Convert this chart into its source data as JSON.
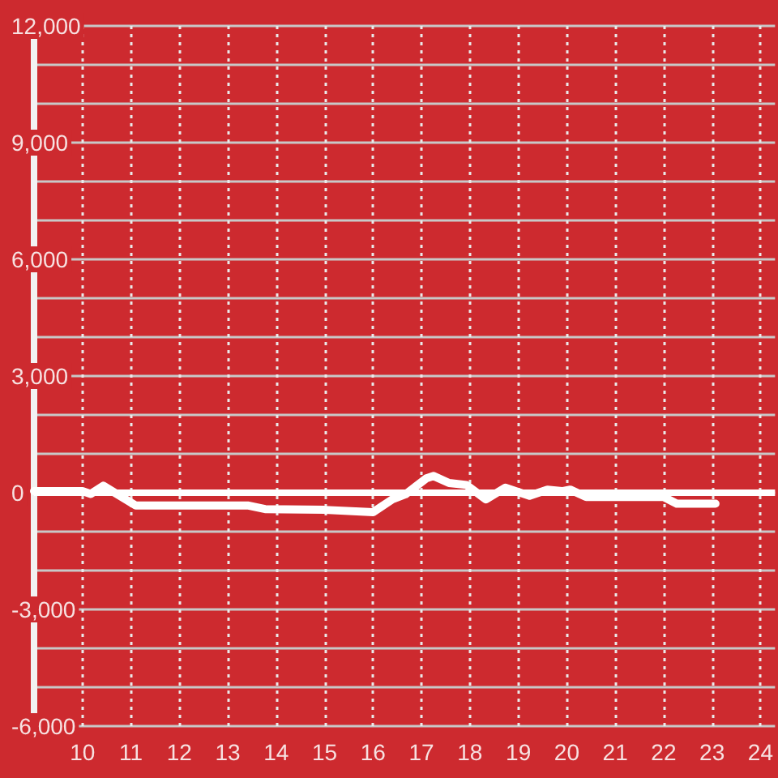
{
  "chart_data": {
    "type": "line",
    "x": [
      9.0,
      10.0,
      10.17,
      10.43,
      11.1,
      13.43,
      13.77,
      15.0,
      16.0,
      16.4,
      16.67,
      17.1,
      17.25,
      17.57,
      17.93,
      18.33,
      18.73,
      19.23,
      19.6,
      19.9,
      20.07,
      20.4,
      22.0,
      22.27,
      23.07
    ],
    "series": [
      {
        "color": "#ffffff",
        "values": [
          40,
          40,
          -30,
          180,
          -330,
          -330,
          -420,
          -440,
          -500,
          -170,
          -40,
          370,
          430,
          250,
          200,
          -170,
          130,
          -80,
          80,
          40,
          80,
          -110,
          -110,
          -280,
          -280
        ]
      }
    ],
    "xlim": [
      9,
      24.3
    ],
    "xticks": [
      10,
      11,
      12,
      13,
      14,
      15,
      16,
      17,
      18,
      19,
      20,
      21,
      22,
      23,
      24
    ],
    "ylim": [
      -6000,
      12000
    ],
    "yticks": [
      {
        "value": -6000,
        "label": "-6,000"
      },
      {
        "value": -5000,
        "label": null
      },
      {
        "value": -4000,
        "label": null
      },
      {
        "value": -3000,
        "label": "-3,000"
      },
      {
        "value": -2000,
        "label": null
      },
      {
        "value": -1000,
        "label": null
      },
      0,
      {
        "value": 1000,
        "label": null
      },
      {
        "value": 2000,
        "label": null
      },
      {
        "value": 3000,
        "label": "3,000"
      },
      {
        "value": 4000,
        "label": null
      },
      {
        "value": 5000,
        "label": null
      },
      {
        "value": 6000,
        "label": "6,000"
      },
      {
        "value": 7000,
        "label": null
      },
      {
        "value": 8000,
        "label": null
      },
      {
        "value": 9000,
        "label": "9,000"
      },
      {
        "value": 10000,
        "label": null
      },
      {
        "value": 11000,
        "label": null
      },
      {
        "value": 12000,
        "label": "12,000"
      }
    ],
    "grid": true,
    "marker": "none",
    "line_style": "solid",
    "ref_lines": [
      {
        "axis": "y",
        "value": 0,
        "color": "#ffffff"
      }
    ]
  }
}
